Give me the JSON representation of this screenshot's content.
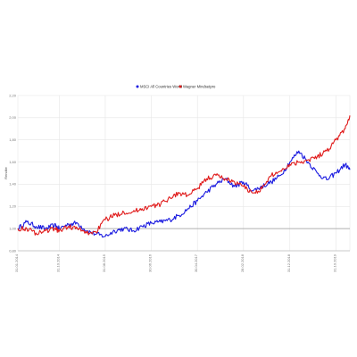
{
  "chart_data": {
    "type": "line",
    "ylabel": "Rendite",
    "ylim": [
      0.8,
      2.2
    ],
    "y_ticks": [
      0.8,
      1.0,
      1.2,
      1.4,
      1.6,
      1.8,
      2.0,
      2.2
    ],
    "y_tick_labels": [
      "0,80",
      "1,00",
      "1,20",
      "1,40",
      "1,60",
      "1,80",
      "2,00",
      "2,20"
    ],
    "xlim": [
      "2014-01-31",
      "2020-01-31"
    ],
    "x_ticks": [
      "2014-01-31",
      "2014-10-31",
      "2015-08-31",
      "2016-06-30",
      "2017-04-30",
      "2018-02-28",
      "2018-12-31",
      "2019-10-31"
    ],
    "x_tick_labels": [
      "31.01.2014",
      "31.10.2014",
      "31.08.2015",
      "30.06.2016",
      "30.04.2017",
      "28.02.2018",
      "31.12.2018",
      "31.10.2019"
    ],
    "grid": true,
    "legend_position": "top-center",
    "series": [
      {
        "name": "MSCI All Countries World",
        "color": "#1a1ae0",
        "x": [
          "2014-01-31",
          "2014-03-31",
          "2014-05-31",
          "2014-07-31",
          "2014-09-30",
          "2014-10-31",
          "2014-12-31",
          "2015-02-28",
          "2015-04-30",
          "2015-06-30",
          "2015-08-31",
          "2015-10-31",
          "2015-12-31",
          "2016-02-29",
          "2016-04-30",
          "2016-06-30",
          "2016-08-31",
          "2016-10-31",
          "2016-12-31",
          "2017-02-28",
          "2017-04-30",
          "2017-06-30",
          "2017-08-31",
          "2017-10-31",
          "2017-12-31",
          "2018-02-28",
          "2018-04-30",
          "2018-06-30",
          "2018-08-31",
          "2018-10-31",
          "2018-12-31",
          "2019-02-28",
          "2019-04-30",
          "2019-06-30",
          "2019-08-31",
          "2019-10-31",
          "2019-12-31",
          "2020-01-31"
        ],
        "values": [
          1.0,
          1.06,
          1.02,
          1.0,
          1.03,
          1.0,
          1.04,
          1.05,
          0.98,
          0.95,
          0.93,
          0.98,
          1.0,
          0.98,
          1.02,
          1.05,
          1.06,
          1.08,
          1.12,
          1.18,
          1.25,
          1.33,
          1.4,
          1.45,
          1.38,
          1.42,
          1.34,
          1.38,
          1.42,
          1.48,
          1.6,
          1.7,
          1.6,
          1.5,
          1.44,
          1.5,
          1.58,
          1.53
        ]
      },
      {
        "name": "Wagner Mindsetpro",
        "color": "#e01a1a",
        "x": [
          "2014-01-31",
          "2014-03-31",
          "2014-05-31",
          "2014-07-31",
          "2014-09-30",
          "2014-10-31",
          "2014-12-31",
          "2015-02-28",
          "2015-04-30",
          "2015-06-30",
          "2015-08-31",
          "2015-10-31",
          "2015-12-31",
          "2016-02-29",
          "2016-04-30",
          "2016-06-30",
          "2016-08-31",
          "2016-10-31",
          "2016-12-31",
          "2017-02-28",
          "2017-04-30",
          "2017-06-30",
          "2017-08-31",
          "2017-10-31",
          "2017-12-31",
          "2018-02-28",
          "2018-04-30",
          "2018-06-30",
          "2018-08-31",
          "2018-10-31",
          "2018-12-31",
          "2019-02-28",
          "2019-04-30",
          "2019-06-30",
          "2019-08-31",
          "2019-10-31",
          "2019-12-31",
          "2020-01-31"
        ],
        "values": [
          1.0,
          1.0,
          0.96,
          0.98,
          1.0,
          0.98,
          1.02,
          1.0,
          0.96,
          0.97,
          1.08,
          1.12,
          1.15,
          1.15,
          1.18,
          1.2,
          1.22,
          1.28,
          1.32,
          1.3,
          1.36,
          1.45,
          1.48,
          1.45,
          1.42,
          1.38,
          1.32,
          1.36,
          1.48,
          1.52,
          1.58,
          1.6,
          1.62,
          1.65,
          1.7,
          1.8,
          1.9,
          2.02
        ]
      }
    ]
  }
}
